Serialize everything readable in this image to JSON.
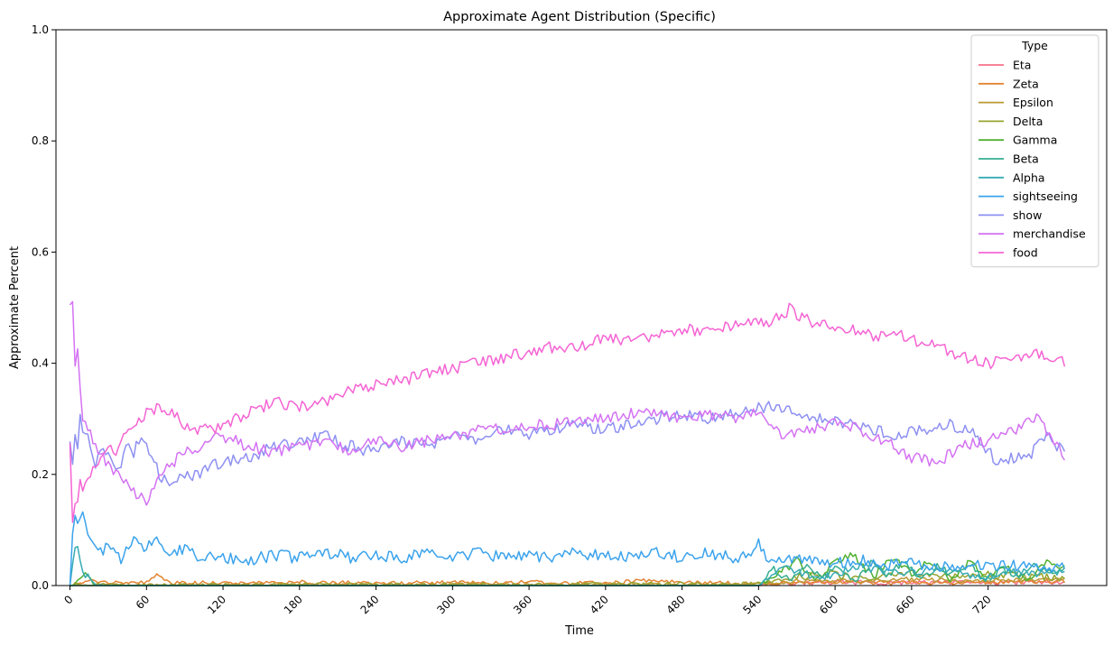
{
  "chart_data": {
    "type": "line",
    "title": "Approximate Agent Distribution (Specific)",
    "xlabel": "Time",
    "ylabel": "Approximate Percent",
    "xlim": [
      -11,
      813
    ],
    "ylim": [
      0,
      1.0
    ],
    "xticks": [
      0,
      60,
      120,
      180,
      240,
      300,
      360,
      420,
      480,
      540,
      600,
      660,
      720
    ],
    "yticks": [
      "0.0",
      "0.2",
      "0.4",
      "0.6",
      "0.8",
      "1.0"
    ],
    "grid": false,
    "legend": {
      "title": "Type",
      "placement": "top-right"
    },
    "series": [
      {
        "name": "Eta",
        "color": "#f77189",
        "x": [
          0,
          540,
          560,
          600,
          640,
          680,
          720,
          780
        ],
        "values": [
          0.0,
          0.0,
          0.004,
          0.006,
          0.005,
          0.006,
          0.005,
          0.006
        ]
      },
      {
        "name": "Zeta",
        "color": "#e18432",
        "x": [
          0,
          10,
          20,
          40,
          60,
          68,
          80,
          120,
          180,
          240,
          300,
          360,
          420,
          460,
          480,
          540,
          600,
          660,
          720,
          780
        ],
        "values": [
          0.0,
          0.005,
          0.008,
          0.006,
          0.005,
          0.018,
          0.004,
          0.005,
          0.006,
          0.004,
          0.005,
          0.006,
          0.004,
          0.01,
          0.005,
          0.004,
          0.006,
          0.005,
          0.006,
          0.008
        ]
      },
      {
        "name": "Epsilon",
        "color": "#bb9832",
        "x": [
          0,
          540,
          580,
          620,
          660,
          700,
          740,
          780
        ],
        "values": [
          0.0,
          0.002,
          0.01,
          0.008,
          0.012,
          0.009,
          0.011,
          0.01
        ]
      },
      {
        "name": "Delta",
        "color": "#97a431",
        "x": [
          0,
          540,
          570,
          600,
          630,
          660,
          690,
          720,
          750,
          780
        ],
        "values": [
          0.0,
          0.003,
          0.015,
          0.02,
          0.012,
          0.025,
          0.015,
          0.02,
          0.018,
          0.015
        ]
      },
      {
        "name": "Gamma",
        "color": "#50b131",
        "x": [
          0,
          14,
          20,
          540,
          555,
          570,
          585,
          600,
          615,
          630,
          645,
          660,
          675,
          690,
          705,
          720,
          735,
          750,
          765,
          780
        ],
        "values": [
          0.0,
          0.02,
          0.0,
          0.0,
          0.02,
          0.045,
          0.01,
          0.04,
          0.055,
          0.015,
          0.05,
          0.02,
          0.045,
          0.01,
          0.04,
          0.015,
          0.035,
          0.01,
          0.04,
          0.03
        ]
      },
      {
        "name": "Beta",
        "color": "#34ae91",
        "x": [
          0,
          540,
          552,
          565,
          578,
          590,
          603,
          616,
          628,
          641,
          654,
          667,
          680,
          692,
          705,
          718,
          731,
          744,
          757,
          770,
          780
        ],
        "values": [
          0.0,
          0.0,
          0.03,
          0.01,
          0.04,
          0.015,
          0.035,
          0.005,
          0.04,
          0.02,
          0.045,
          0.01,
          0.035,
          0.02,
          0.04,
          0.01,
          0.03,
          0.015,
          0.035,
          0.02,
          0.025
        ]
      },
      {
        "name": "Alpha",
        "color": "#37abb5",
        "x": [
          0,
          5,
          8,
          12,
          18,
          25,
          540,
          560,
          590,
          620,
          650,
          680,
          710,
          740,
          770,
          780
        ],
        "values": [
          0.0,
          0.08,
          0.04,
          0.02,
          0.005,
          0.0,
          0.0,
          0.03,
          0.015,
          0.035,
          0.02,
          0.03,
          0.015,
          0.025,
          0.02,
          0.025
        ]
      },
      {
        "name": "sightseeing",
        "color": "#3ba3ec",
        "x": [
          0,
          3,
          6,
          10,
          15,
          20,
          30,
          40,
          50,
          60,
          70,
          80,
          90,
          100,
          110,
          120,
          140,
          160,
          180,
          200,
          220,
          240,
          260,
          280,
          300,
          320,
          340,
          360,
          380,
          400,
          420,
          440,
          460,
          480,
          500,
          520,
          535,
          540,
          545,
          560,
          580,
          600,
          620,
          640,
          660,
          680,
          700,
          720,
          740,
          760,
          780
        ],
        "values": [
          0.0,
          0.15,
          0.11,
          0.13,
          0.09,
          0.06,
          0.07,
          0.05,
          0.08,
          0.07,
          0.08,
          0.06,
          0.065,
          0.05,
          0.055,
          0.05,
          0.045,
          0.055,
          0.05,
          0.06,
          0.05,
          0.055,
          0.05,
          0.06,
          0.05,
          0.06,
          0.05,
          0.055,
          0.05,
          0.06,
          0.05,
          0.055,
          0.06,
          0.05,
          0.06,
          0.05,
          0.06,
          0.08,
          0.05,
          0.045,
          0.05,
          0.04,
          0.045,
          0.035,
          0.04,
          0.035,
          0.03,
          0.04,
          0.035,
          0.03,
          0.035
        ]
      },
      {
        "name": "show",
        "color": "#8e90f2",
        "x": [
          0,
          2,
          4,
          6,
          8,
          10,
          15,
          20,
          25,
          30,
          35,
          40,
          45,
          50,
          55,
          60,
          70,
          80,
          90,
          100,
          110,
          120,
          140,
          160,
          180,
          200,
          220,
          240,
          260,
          280,
          300,
          320,
          340,
          360,
          380,
          400,
          420,
          440,
          460,
          480,
          500,
          520,
          540,
          555,
          570,
          590,
          610,
          630,
          650,
          670,
          690,
          710,
          725,
          730,
          740,
          755,
          765,
          775,
          780
        ],
        "values": [
          0.25,
          0.22,
          0.28,
          0.25,
          0.31,
          0.27,
          0.26,
          0.22,
          0.25,
          0.24,
          0.2,
          0.22,
          0.25,
          0.24,
          0.27,
          0.25,
          0.2,
          0.18,
          0.2,
          0.2,
          0.22,
          0.22,
          0.23,
          0.25,
          0.26,
          0.27,
          0.25,
          0.24,
          0.26,
          0.25,
          0.27,
          0.26,
          0.28,
          0.27,
          0.28,
          0.29,
          0.28,
          0.29,
          0.3,
          0.31,
          0.3,
          0.31,
          0.32,
          0.32,
          0.31,
          0.3,
          0.29,
          0.28,
          0.27,
          0.28,
          0.29,
          0.27,
          0.23,
          0.22,
          0.23,
          0.24,
          0.27,
          0.25,
          0.24
        ]
      },
      {
        "name": "merchandise",
        "color": "#d472f3",
        "x": [
          0,
          2,
          4,
          6,
          8,
          10,
          15,
          20,
          25,
          30,
          35,
          40,
          45,
          50,
          55,
          60,
          70,
          80,
          90,
          100,
          110,
          120,
          140,
          160,
          180,
          200,
          220,
          240,
          260,
          280,
          300,
          320,
          340,
          360,
          380,
          400,
          420,
          440,
          460,
          480,
          500,
          520,
          540,
          550,
          560,
          580,
          600,
          620,
          640,
          650,
          660,
          680,
          700,
          720,
          740,
          760,
          780
        ],
        "values": [
          0.5,
          0.5,
          0.4,
          0.42,
          0.35,
          0.3,
          0.28,
          0.25,
          0.23,
          0.22,
          0.2,
          0.19,
          0.18,
          0.17,
          0.16,
          0.15,
          0.19,
          0.22,
          0.24,
          0.25,
          0.26,
          0.27,
          0.25,
          0.24,
          0.25,
          0.26,
          0.24,
          0.26,
          0.25,
          0.26,
          0.27,
          0.28,
          0.28,
          0.29,
          0.29,
          0.3,
          0.3,
          0.31,
          0.31,
          0.3,
          0.31,
          0.3,
          0.31,
          0.28,
          0.27,
          0.28,
          0.29,
          0.28,
          0.26,
          0.24,
          0.23,
          0.22,
          0.25,
          0.26,
          0.28,
          0.3,
          0.23
        ]
      },
      {
        "name": "food",
        "color": "#f564d4",
        "x": [
          0,
          2,
          4,
          6,
          8,
          10,
          15,
          20,
          25,
          30,
          35,
          40,
          45,
          50,
          55,
          60,
          70,
          80,
          90,
          100,
          110,
          120,
          140,
          160,
          180,
          200,
          220,
          240,
          260,
          280,
          300,
          320,
          340,
          360,
          380,
          400,
          420,
          440,
          460,
          480,
          500,
          520,
          540,
          555,
          565,
          575,
          590,
          610,
          630,
          650,
          665,
          680,
          700,
          720,
          740,
          760,
          780
        ],
        "values": [
          0.25,
          0.12,
          0.14,
          0.15,
          0.18,
          0.17,
          0.19,
          0.22,
          0.24,
          0.25,
          0.23,
          0.26,
          0.27,
          0.28,
          0.3,
          0.31,
          0.32,
          0.31,
          0.29,
          0.28,
          0.28,
          0.29,
          0.31,
          0.33,
          0.32,
          0.33,
          0.35,
          0.36,
          0.37,
          0.38,
          0.39,
          0.4,
          0.41,
          0.42,
          0.43,
          0.43,
          0.45,
          0.44,
          0.45,
          0.46,
          0.46,
          0.47,
          0.47,
          0.48,
          0.5,
          0.48,
          0.47,
          0.46,
          0.45,
          0.45,
          0.44,
          0.43,
          0.41,
          0.4,
          0.41,
          0.42,
          0.4
        ]
      }
    ]
  }
}
